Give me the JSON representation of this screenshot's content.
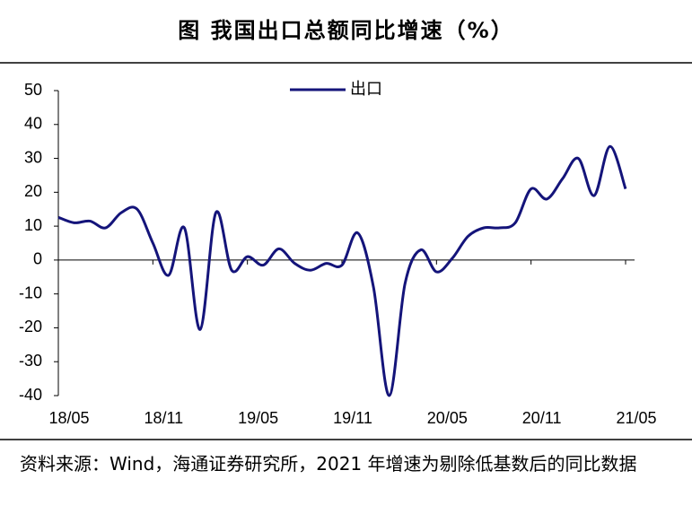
{
  "chart_data": {
    "type": "line",
    "title": "图  我国出口总额同比增速（%）",
    "note": "资料来源：Wind，海通证券研究所，2021 年增速为剔除低基数后的同比数据",
    "categories": [
      "18/05",
      null,
      null,
      null,
      null,
      null,
      "18/11",
      null,
      null,
      null,
      null,
      null,
      "19/05",
      null,
      null,
      null,
      null,
      null,
      "19/11",
      null,
      null,
      null,
      null,
      null,
      "20/05",
      null,
      null,
      null,
      null,
      null,
      "20/11",
      null,
      null,
      null,
      null,
      null,
      "21/05"
    ],
    "series": [
      {
        "name": "出口",
        "color": "#14147a",
        "values": [
          12.6,
          11,
          11.5,
          9.5,
          14,
          15,
          5,
          -4.5,
          9.5,
          -20.5,
          14,
          -3,
          1,
          -1.5,
          3.3,
          -1,
          -3,
          -1,
          -1.5,
          8,
          -8,
          -40,
          -7,
          3,
          -3.5,
          0.5,
          7,
          9.5,
          9.5,
          11,
          21,
          18,
          24,
          30,
          19,
          33.5,
          21
        ]
      }
    ],
    "ylim": [
      -40,
      50
    ],
    "yticks": [
      -40,
      -30,
      -20,
      -10,
      0,
      10,
      20,
      30,
      40,
      50
    ],
    "legend": "upper center",
    "smooth": true
  }
}
